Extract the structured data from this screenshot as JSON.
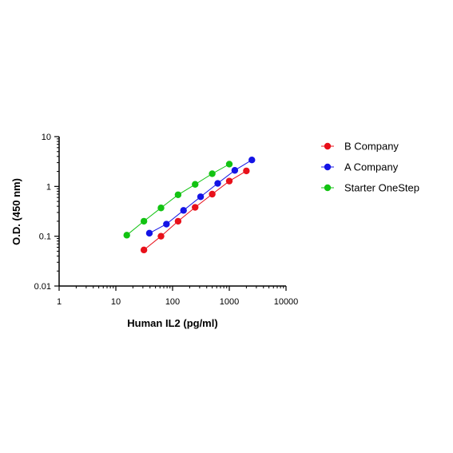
{
  "chart_data": {
    "type": "scatter",
    "xlabel": "Human IL2 (pg/ml)",
    "ylabel": "O.D. (450 nm)",
    "x_scale": "log",
    "y_scale": "log",
    "xlim": [
      1,
      10000
    ],
    "ylim": [
      0.01,
      10
    ],
    "x_ticks": [
      1,
      10,
      100,
      1000,
      10000
    ],
    "x_tick_labels": [
      "1",
      "10",
      "100",
      "1000",
      "10000"
    ],
    "y_ticks": [
      0.01,
      0.1,
      1,
      10
    ],
    "y_tick_labels": [
      "0.01",
      "0.1",
      "1",
      "10"
    ],
    "grid": false,
    "legend_position": "right",
    "series": [
      {
        "name": "B Company",
        "color": "#e8101a",
        "x": [
          31.25,
          62.5,
          125,
          250,
          500,
          1000,
          2000
        ],
        "y": [
          0.053,
          0.1,
          0.2,
          0.38,
          0.7,
          1.28,
          2.05
        ]
      },
      {
        "name": "A Company",
        "color": "#1414e6",
        "x": [
          39,
          78,
          156,
          312,
          625,
          1250,
          2500
        ],
        "y": [
          0.115,
          0.175,
          0.33,
          0.62,
          1.15,
          2.1,
          3.4
        ]
      },
      {
        "name": "Starter OneStep",
        "color": "#12c312",
        "x": [
          15.6,
          31.25,
          62.5,
          125,
          250,
          500,
          1000
        ],
        "y": [
          0.105,
          0.2,
          0.37,
          0.68,
          1.1,
          1.8,
          2.8
        ]
      }
    ]
  }
}
